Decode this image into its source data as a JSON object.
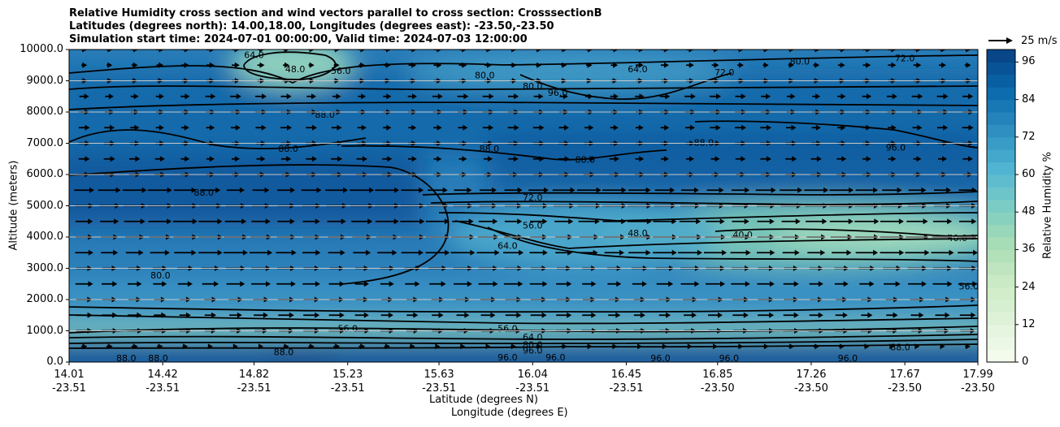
{
  "chart_data": {
    "type": "contourf_with_vectors",
    "title_lines": [
      "Relative Humidity cross section and wind vectors parallel to cross section: CrosssectionB",
      "Latitudes (degrees north): 14.00,18.00, Longitudes (degrees east): -23.50,-23.50",
      "Simulation start time: 2024-07-01 00:00:00, Valid time: 2024-07-03 12:00:00"
    ],
    "ylabel": "Altitude (meters)",
    "xlabel_1": "Latitude (degrees N)",
    "xlabel_2": "Longitude (degrees E)",
    "ylim": [
      0,
      10000
    ],
    "y_ticks": [
      {
        "value": 0,
        "label": "0.0"
      },
      {
        "value": 1000,
        "label": "1000.0"
      },
      {
        "value": 2000,
        "label": "2000.0"
      },
      {
        "value": 3000,
        "label": "3000.0"
      },
      {
        "value": 4000,
        "label": "4000.0"
      },
      {
        "value": 5000,
        "label": "5000.0"
      },
      {
        "value": 6000,
        "label": "6000.0"
      },
      {
        "value": 7000,
        "label": "7000.0"
      },
      {
        "value": 8000,
        "label": "8000.0"
      },
      {
        "value": 9000,
        "label": "9000.0"
      },
      {
        "value": 10000,
        "label": "10000.0"
      }
    ],
    "xlim": [
      14.01,
      17.99
    ],
    "x_ticks": [
      {
        "value": 14.01,
        "lat": "14.01",
        "lon": "-23.51"
      },
      {
        "value": 14.42,
        "lat": "14.42",
        "lon": "-23.51"
      },
      {
        "value": 14.82,
        "lat": "14.82",
        "lon": "-23.51"
      },
      {
        "value": 15.23,
        "lat": "15.23",
        "lon": "-23.51"
      },
      {
        "value": 15.63,
        "lat": "15.63",
        "lon": "-23.51"
      },
      {
        "value": 16.04,
        "lat": "16.04",
        "lon": "-23.51"
      },
      {
        "value": 16.45,
        "lat": "16.45",
        "lon": "-23.51"
      },
      {
        "value": 16.85,
        "lat": "16.85",
        "lon": "-23.50"
      },
      {
        "value": 17.26,
        "lat": "17.26",
        "lon": "-23.50"
      },
      {
        "value": 17.67,
        "lat": "17.67",
        "lon": "-23.50"
      },
      {
        "value": 17.99,
        "lat": "17.99",
        "lon": "-23.50"
      }
    ],
    "colorbar": {
      "label": "Relative Humidity %",
      "min": 0,
      "max": 100,
      "step": 4,
      "tick_values": [
        0,
        12,
        24,
        36,
        48,
        60,
        72,
        84,
        96
      ]
    },
    "quiver_key": {
      "label": "25 m/s",
      "value": 25
    },
    "contour_labels": [
      {
        "text": "72.0",
        "x": 16.04,
        "y": 5250
      },
      {
        "text": "56.0",
        "x": 16.04,
        "y": 4350
      },
      {
        "text": "64.0",
        "x": 15.93,
        "y": 3700
      },
      {
        "text": "48.0",
        "x": 16.5,
        "y": 4100
      },
      {
        "text": "40.0",
        "x": 16.96,
        "y": 4050
      },
      {
        "text": "40.0",
        "x": 17.9,
        "y": 3950
      },
      {
        "text": "88.0",
        "x": 14.6,
        "y": 5400
      },
      {
        "text": "88.0",
        "x": 14.97,
        "y": 6800
      },
      {
        "text": "88.0",
        "x": 15.13,
        "y": 7900
      },
      {
        "text": "88.0",
        "x": 15.85,
        "y": 6800
      },
      {
        "text": "88.0",
        "x": 16.27,
        "y": 6450
      },
      {
        "text": "88.0",
        "x": 16.79,
        "y": 7000
      },
      {
        "text": "96.0",
        "x": 17.63,
        "y": 6850
      },
      {
        "text": "80.0",
        "x": 15.83,
        "y": 9150
      },
      {
        "text": "80.0",
        "x": 16.04,
        "y": 8800
      },
      {
        "text": "80.0",
        "x": 14.41,
        "y": 2750
      },
      {
        "text": "96.0",
        "x": 16.15,
        "y": 8600
      },
      {
        "text": "72.0",
        "x": 16.35,
        "y": 9900
      },
      {
        "text": "64.0",
        "x": 16.5,
        "y": 9350
      },
      {
        "text": "72.0",
        "x": 16.88,
        "y": 9250
      },
      {
        "text": "72.0",
        "x": 17.67,
        "y": 9700
      },
      {
        "text": "80.0",
        "x": 17.21,
        "y": 9600
      },
      {
        "text": "64.0",
        "x": 17.42,
        "y": 10000
      },
      {
        "text": "56.0",
        "x": 15.2,
        "y": 9300
      },
      {
        "text": "64.0",
        "x": 14.82,
        "y": 9800
      },
      {
        "text": "48.0",
        "x": 15.0,
        "y": 9350
      },
      {
        "text": "56.0",
        "x": 15.93,
        "y": 1050
      },
      {
        "text": "56.0",
        "x": 15.23,
        "y": 1050
      },
      {
        "text": "64.0",
        "x": 16.04,
        "y": 780
      },
      {
        "text": "80.0",
        "x": 16.04,
        "y": 530
      },
      {
        "text": "96.0",
        "x": 16.04,
        "y": 350
      },
      {
        "text": "96.0",
        "x": 15.93,
        "y": 130
      },
      {
        "text": "96.0",
        "x": 16.14,
        "y": 130
      },
      {
        "text": "96.0",
        "x": 16.6,
        "y": 100
      },
      {
        "text": "96.0",
        "x": 16.9,
        "y": 100
      },
      {
        "text": "88.0",
        "x": 17.65,
        "y": 450
      },
      {
        "text": "88.0",
        "x": 14.26,
        "y": 100
      },
      {
        "text": "88.0",
        "x": 14.4,
        "y": 100
      },
      {
        "text": "88.0",
        "x": 14.95,
        "y": 300
      },
      {
        "text": "96.0",
        "x": 17.42,
        "y": 100
      },
      {
        "text": "56.0",
        "x": 17.95,
        "y": 2400
      }
    ]
  }
}
